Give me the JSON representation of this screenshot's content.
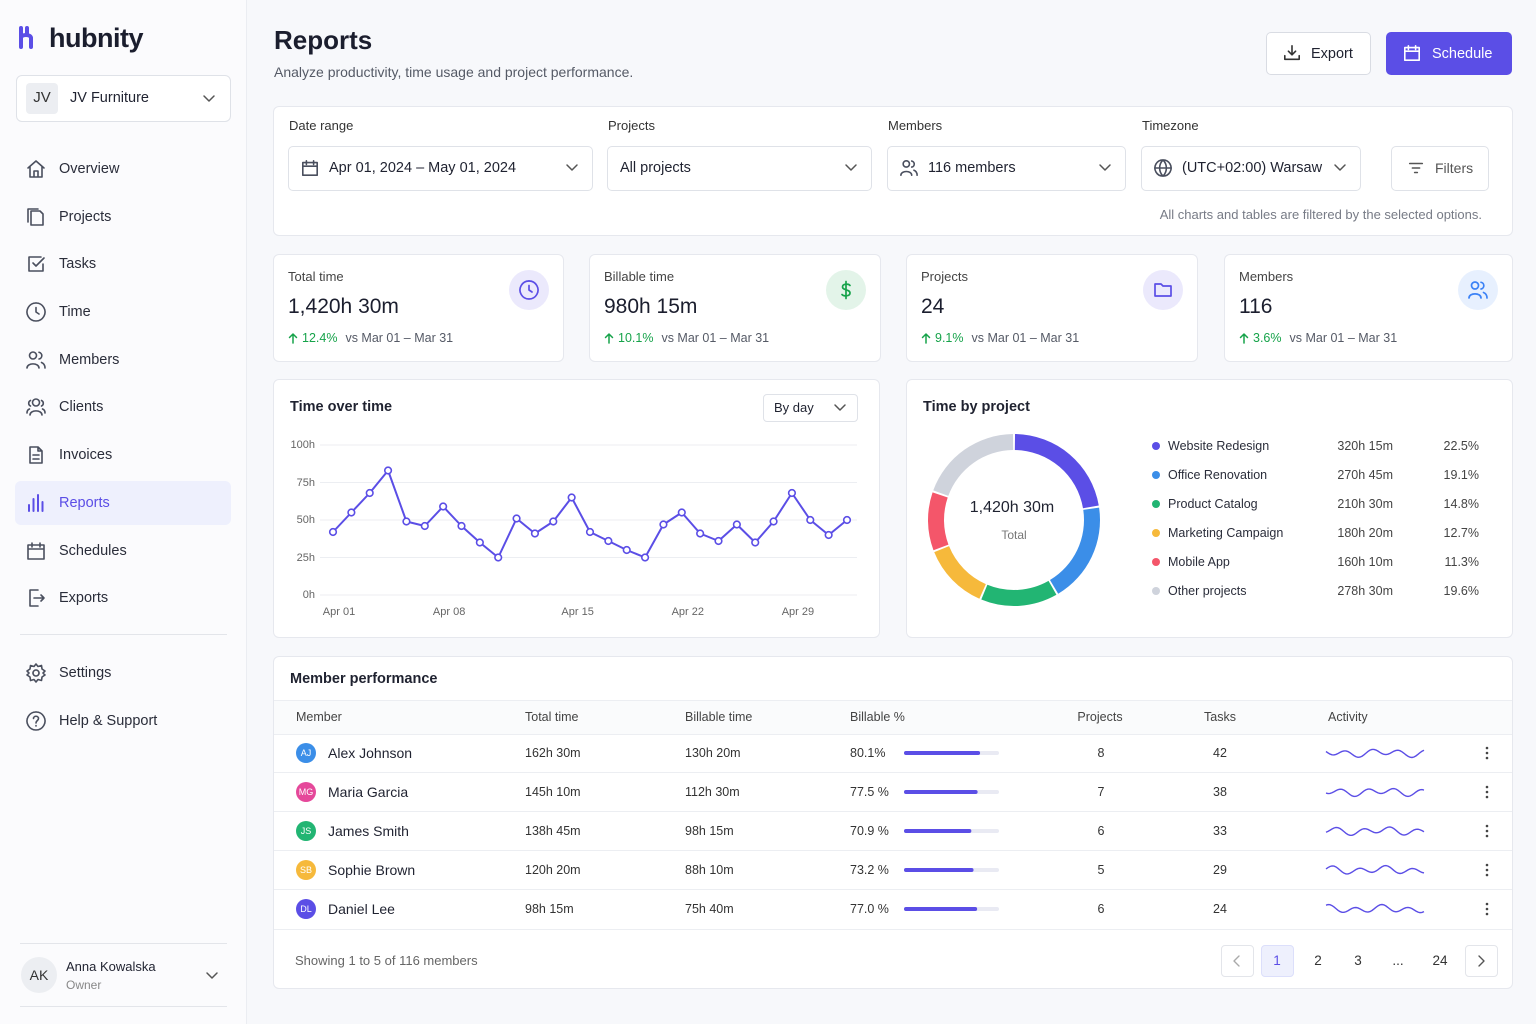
{
  "sidebar": {
    "brand": "hubnity",
    "workspace": {
      "initials": "JV",
      "name": "JV Furniture"
    },
    "nav": [
      "Overview",
      "Projects",
      "Tasks",
      "Time",
      "Members",
      "Clients",
      "Invoices",
      "Reports",
      "Schedules",
      "Exports"
    ],
    "nav_bottom": [
      "Settings",
      "Help & Support"
    ],
    "active": 7,
    "user": {
      "initials": "AK",
      "name": "Anna Kowalska",
      "role": "Owner"
    }
  },
  "header": {
    "title": "Reports",
    "subtitle": "Analyze productivity, time usage and project performance.",
    "actions": [
      "Export",
      "Schedule"
    ]
  },
  "filters": {
    "fields": [
      {
        "label": "Date range",
        "value": "Apr 01, 2024 – May 01, 2024"
      },
      {
        "label": "Projects",
        "value": "All projects"
      },
      {
        "label": "Members",
        "value": "116 members"
      },
      {
        "label": "Timezone",
        "value": "(UTC+02:00) Warsaw"
      }
    ],
    "button": "Filters",
    "note": "All charts and tables are filtered by the selected options."
  },
  "kpis": [
    {
      "label": "Total time",
      "value": "1,420h 30m",
      "change": "12.4%",
      "comparison": "vs Mar 01 – Mar 31",
      "color": "#5b4ee6"
    },
    {
      "label": "Billable time",
      "value": "980h 15m",
      "change": "10.1%",
      "comparison": "vs Mar 01 – Mar 31",
      "color": "#16a34a"
    },
    {
      "label": "Projects",
      "value": "24",
      "change": "9.1%",
      "comparison": "vs Mar 01 – Mar 31",
      "color": "#5b4ee6"
    },
    {
      "label": "Members",
      "value": "116",
      "change": "3.6%",
      "comparison": "vs Mar 01 – Mar 31",
      "color": "#3b82f6"
    }
  ],
  "chart_data": [
    {
      "type": "line",
      "title": "Time over time",
      "control": "By day",
      "categories": [
        "Apr 01",
        null,
        null,
        null,
        null,
        null,
        "Apr 08",
        null,
        null,
        null,
        null,
        null,
        null,
        "Apr 15",
        null,
        null,
        null,
        null,
        null,
        "Apr 22",
        null,
        null,
        null,
        null,
        null,
        "Apr 29",
        null,
        null,
        null
      ],
      "values": [
        42,
        55,
        68,
        83,
        49,
        46,
        59,
        46,
        35,
        25,
        51,
        41,
        49,
        65,
        42,
        36,
        30,
        25,
        47,
        55,
        41,
        36,
        47,
        35,
        49,
        68,
        50,
        40,
        50
      ],
      "color": "#5b4ee6",
      "ylim": [
        0,
        100
      ],
      "yticks": [
        {
          "value": 0,
          "label": "0h"
        },
        {
          "value": 25,
          "label": "25h"
        },
        {
          "value": 50,
          "label": "50h"
        },
        {
          "value": 75,
          "label": "75h"
        },
        {
          "value": 100,
          "label": "100h"
        }
      ],
      "grid": true
    },
    {
      "type": "pie",
      "donut": true,
      "title": "Time by project",
      "center_value": "1,420h 30m",
      "center_label": "Total",
      "categories": [
        "Website Redesign",
        "Office Renovation",
        "Product Catalog",
        "Marketing Campaign",
        "Mobile App",
        "Other projects"
      ],
      "values": [
        22.5,
        19.1,
        14.8,
        12.7,
        11.3,
        19.6
      ],
      "value_labels": [
        "22.5%",
        "19.1%",
        "14.8%",
        "12.7%",
        "11.3%",
        "19.6%"
      ],
      "hours": [
        "320h 15m",
        "270h 45m",
        "210h 30m",
        "180h 20m",
        "160h 10m",
        "278h 30m"
      ],
      "colors": [
        "#5b4ee6",
        "#3b8ee8",
        "#22b573",
        "#f6b93b",
        "#f4566a",
        "#cfd3dc"
      ]
    }
  ],
  "members_table": {
    "title": "Member performance",
    "columns": [
      "Member",
      "Total time",
      "Billable time",
      "Billable %",
      "Projects",
      "Tasks",
      "Activity"
    ],
    "rows": [
      {
        "initials": "AJ",
        "color": "#3b8ee8",
        "name": "Alex Johnson",
        "total": "162h 30m",
        "billable": "130h 20m",
        "billable_pct": {
          "value": 80.1,
          "label": "80.1%"
        },
        "projects": "8",
        "tasks": "42"
      },
      {
        "initials": "MG",
        "color": "#e5489a",
        "name": "Maria Garcia",
        "total": "145h 10m",
        "billable": "112h 30m",
        "billable_pct": {
          "value": 77.5,
          "label": "77.5 %"
        },
        "projects": "7",
        "tasks": "38"
      },
      {
        "initials": "JS",
        "color": "#22b573",
        "name": "James Smith",
        "total": "138h 45m",
        "billable": "98h 15m",
        "billable_pct": {
          "value": 70.9,
          "label": "70.9 %"
        },
        "projects": "6",
        "tasks": "33"
      },
      {
        "initials": "SB",
        "color": "#f6b93b",
        "name": "Sophie Brown",
        "total": "120h 20m",
        "billable": "88h 10m",
        "billable_pct": {
          "value": 73.2,
          "label": "73.2 %"
        },
        "projects": "5",
        "tasks": "29"
      },
      {
        "initials": "DL",
        "color": "#5b4ee6",
        "name": "Daniel Lee",
        "total": "98h 15m",
        "billable": "75h 40m",
        "billable_pct": {
          "value": 77.0,
          "label": "77.0 %"
        },
        "projects": "6",
        "tasks": "24"
      }
    ],
    "summary": "Showing 1 to 5 of 116 members",
    "pages": [
      "1",
      "2",
      "3",
      "...",
      "24"
    ],
    "current_page": 0
  }
}
